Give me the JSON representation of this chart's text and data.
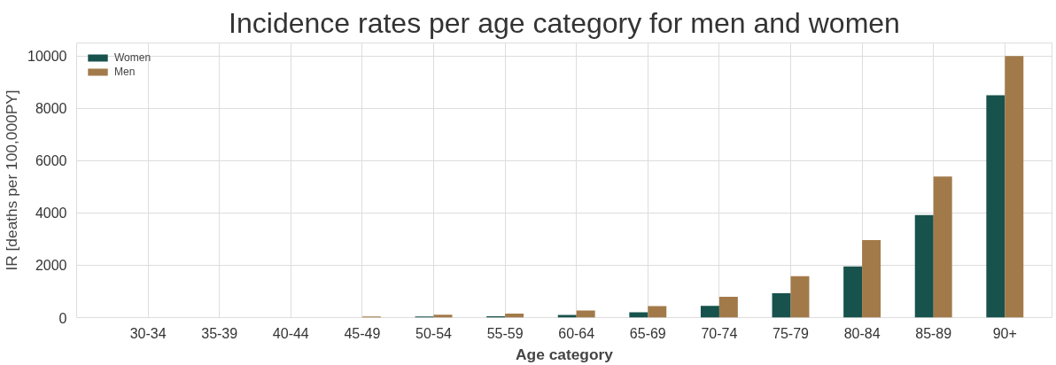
{
  "chart_data": {
    "type": "bar",
    "title": "Incidence rates per age category for men and women",
    "xlabel": "Age category",
    "ylabel": "IR [deaths per 100,000PY]",
    "categories": [
      "30-34",
      "35-39",
      "40-44",
      "45-49",
      "50-54",
      "55-59",
      "60-64",
      "65-69",
      "70-74",
      "75-79",
      "80-84",
      "85-89",
      "90+"
    ],
    "series": [
      {
        "name": "Women",
        "color": "#17524c",
        "values": [
          0,
          0,
          0,
          0,
          40,
          50,
          100,
          200,
          450,
          930,
          1960,
          3920,
          8500
        ]
      },
      {
        "name": "Men",
        "color": "#a27a4a",
        "values": [
          0,
          0,
          0,
          40,
          110,
          150,
          270,
          440,
          800,
          1580,
          2960,
          5390,
          10000
        ]
      }
    ],
    "ylim": [
      0,
      10500
    ],
    "yticks": [
      0,
      2000,
      4000,
      6000,
      8000,
      10000
    ],
    "grid": true,
    "legend": "top left"
  }
}
